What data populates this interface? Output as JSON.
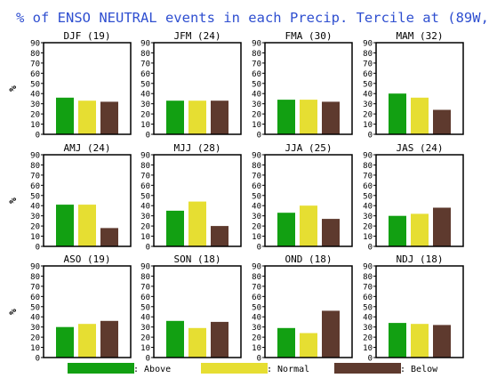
{
  "title": "% of ENSO NEUTRAL events in each Precip. Tercile at (89W, 41N)",
  "colors": {
    "title": "#2f4fd0",
    "above": "#12a012",
    "normal": "#e6de32",
    "below": "#5e3a2e",
    "frame": "#000000"
  },
  "legend": [
    {
      "key": "above",
      "label": ": Above"
    },
    {
      "key": "normal",
      "label": ": Normal"
    },
    {
      "key": "below",
      "label": ": Below"
    }
  ],
  "chart_data": [
    {
      "type": "bar",
      "title": "DJF (19)",
      "ylabel": "%",
      "ylim": [
        0,
        90
      ],
      "yticks": [
        "0",
        "10",
        "20",
        "30",
        "40",
        "50",
        "60",
        "70",
        "80",
        "90"
      ],
      "categories": [
        "Above",
        "Normal",
        "Below"
      ],
      "values": [
        36,
        33,
        32
      ]
    },
    {
      "type": "bar",
      "title": "JFM (24)",
      "ylabel": "",
      "ylim": [
        0,
        90
      ],
      "yticks": [
        "0",
        "10",
        "20",
        "30",
        "40",
        "50",
        "60",
        "70",
        "80",
        "90"
      ],
      "categories": [
        "Above",
        "Normal",
        "Below"
      ],
      "values": [
        33,
        33,
        33
      ]
    },
    {
      "type": "bar",
      "title": "FMA (30)",
      "ylabel": "",
      "ylim": [
        0,
        90
      ],
      "yticks": [
        "0",
        "10",
        "20",
        "30",
        "40",
        "50",
        "60",
        "70",
        "80",
        "90"
      ],
      "categories": [
        "Above",
        "Normal",
        "Below"
      ],
      "values": [
        34,
        34,
        32
      ]
    },
    {
      "type": "bar",
      "title": "MAM (32)",
      "ylabel": "",
      "ylim": [
        0,
        90
      ],
      "yticks": [
        "0",
        "10",
        "20",
        "30",
        "40",
        "50",
        "60",
        "70",
        "80",
        "90"
      ],
      "categories": [
        "Above",
        "Normal",
        "Below"
      ],
      "values": [
        40,
        36,
        24
      ]
    },
    {
      "type": "bar",
      "title": "AMJ (24)",
      "ylabel": "%",
      "ylim": [
        0,
        90
      ],
      "yticks": [
        "0",
        "10",
        "20",
        "30",
        "40",
        "50",
        "60",
        "70",
        "80",
        "90"
      ],
      "categories": [
        "Above",
        "Normal",
        "Below"
      ],
      "values": [
        41,
        41,
        18
      ]
    },
    {
      "type": "bar",
      "title": "MJJ (28)",
      "ylabel": "",
      "ylim": [
        0,
        90
      ],
      "yticks": [
        "0",
        "10",
        "20",
        "30",
        "40",
        "50",
        "60",
        "70",
        "80",
        "90"
      ],
      "categories": [
        "Above",
        "Normal",
        "Below"
      ],
      "values": [
        35,
        44,
        20
      ]
    },
    {
      "type": "bar",
      "title": "JJA (25)",
      "ylabel": "",
      "ylim": [
        0,
        90
      ],
      "yticks": [
        "0",
        "10",
        "20",
        "30",
        "40",
        "50",
        "60",
        "70",
        "80",
        "90"
      ],
      "categories": [
        "Above",
        "Normal",
        "Below"
      ],
      "values": [
        33,
        40,
        27
      ]
    },
    {
      "type": "bar",
      "title": "JAS (24)",
      "ylabel": "",
      "ylim": [
        0,
        90
      ],
      "yticks": [
        "0",
        "10",
        "20",
        "30",
        "40",
        "50",
        "60",
        "70",
        "80",
        "90"
      ],
      "categories": [
        "Above",
        "Normal",
        "Below"
      ],
      "values": [
        30,
        32,
        38
      ]
    },
    {
      "type": "bar",
      "title": "ASO (19)",
      "ylabel": "%",
      "ylim": [
        0,
        90
      ],
      "yticks": [
        "0",
        "10",
        "20",
        "30",
        "40",
        "50",
        "60",
        "70",
        "80",
        "90"
      ],
      "categories": [
        "Above",
        "Normal",
        "Below"
      ],
      "values": [
        30,
        33,
        36
      ]
    },
    {
      "type": "bar",
      "title": "SON (18)",
      "ylabel": "",
      "ylim": [
        0,
        90
      ],
      "yticks": [
        "0",
        "10",
        "20",
        "30",
        "40",
        "50",
        "60",
        "70",
        "80",
        "90"
      ],
      "categories": [
        "Above",
        "Normal",
        "Below"
      ],
      "values": [
        36,
        29,
        35
      ]
    },
    {
      "type": "bar",
      "title": "OND (18)",
      "ylabel": "",
      "ylim": [
        0,
        90
      ],
      "yticks": [
        "0",
        "10",
        "20",
        "30",
        "40",
        "50",
        "60",
        "70",
        "80",
        "90"
      ],
      "categories": [
        "Above",
        "Normal",
        "Below"
      ],
      "values": [
        29,
        24,
        46
      ]
    },
    {
      "type": "bar",
      "title": "NDJ (18)",
      "ylabel": "",
      "ylim": [
        0,
        90
      ],
      "yticks": [
        "0",
        "10",
        "20",
        "30",
        "40",
        "50",
        "60",
        "70",
        "80",
        "90"
      ],
      "categories": [
        "Above",
        "Normal",
        "Below"
      ],
      "values": [
        34,
        33,
        32
      ]
    }
  ]
}
